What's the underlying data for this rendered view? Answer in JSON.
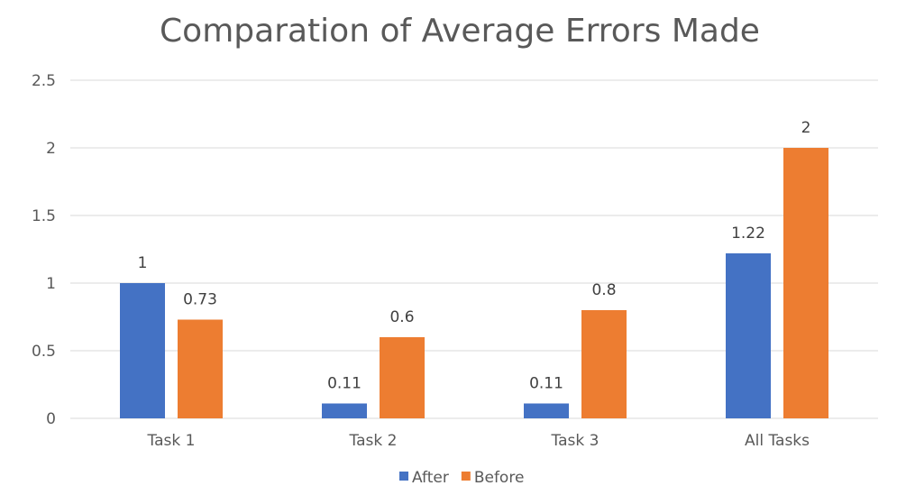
{
  "chart_data": {
    "type": "bar",
    "title": "Comparation of Average Errors Made",
    "xlabel": "",
    "ylabel": "",
    "categories": [
      "Task 1",
      "Task 2",
      "Task 3",
      "All Tasks"
    ],
    "series": [
      {
        "name": "After",
        "color": "#4472C4",
        "values": [
          1,
          0.11,
          0.11,
          1.22
        ]
      },
      {
        "name": "Before",
        "color": "#ED7D31",
        "values": [
          0.73,
          0.6,
          0.8,
          2
        ]
      }
    ],
    "ylim": [
      0,
      2.5
    ],
    "yticks": [
      "0",
      "0.5",
      "1",
      "1.5",
      "2",
      "2.5"
    ],
    "data_labels": [
      [
        "1",
        "0.11",
        "0.11",
        "1.22"
      ],
      [
        "0.73",
        "0.6",
        "0.8",
        "2"
      ]
    ],
    "grid": true,
    "legend_position": "bottom"
  }
}
